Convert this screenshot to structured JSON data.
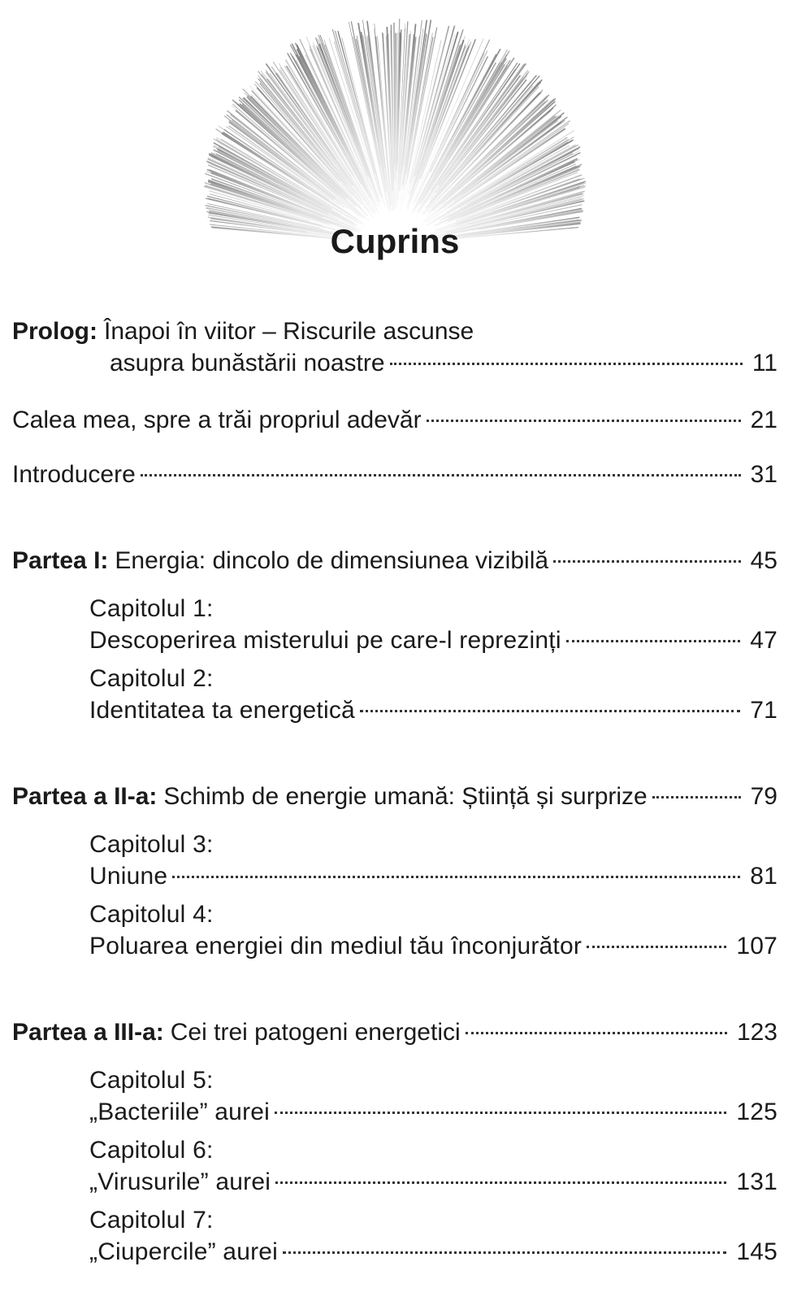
{
  "title": "Cuprins",
  "front": [
    {
      "label": "Prolog:",
      "lines": [
        "Înapoi în viitor – Riscurile ascunse",
        "asupra bunăstării noastre"
      ],
      "page": 11
    },
    {
      "text": "Calea mea, spre a trăi propriul adevăr",
      "page": 21
    },
    {
      "text": "Introducere",
      "page": 31
    }
  ],
  "parts": [
    {
      "label": "Partea I:",
      "text": "Energia: dincolo de dimensiunea vizibilă",
      "page": 45,
      "chapters": [
        {
          "label": "Capitolul 1:",
          "text": "Descoperirea misterului pe care-l reprezinți",
          "page": 47
        },
        {
          "label": "Capitolul 2:",
          "text": "Identitatea ta energetică",
          "page": 71
        }
      ]
    },
    {
      "label": "Partea a II-a:",
      "text": "Schimb de energie umană: Știință și surprize",
      "page": 79,
      "chapters": [
        {
          "label": "Capitolul 3:",
          "text": "Uniune",
          "page": 81
        },
        {
          "label": "Capitolul 4:",
          "text": "Poluarea energiei din mediul tău înconjurător",
          "page": 107
        }
      ]
    },
    {
      "label": "Partea a III-a:",
      "text": "Cei trei patogeni energetici",
      "page": 123,
      "chapters": [
        {
          "label": "Capitolul 5:",
          "text": "„Bacteriile” aurei",
          "page": 125
        },
        {
          "label": "Capitolul 6:",
          "text": "„Virusurile” aurei",
          "page": 131
        },
        {
          "label": "Capitolul 7:",
          "text": "„Ciupercile” aurei",
          "page": 145
        }
      ]
    }
  ]
}
